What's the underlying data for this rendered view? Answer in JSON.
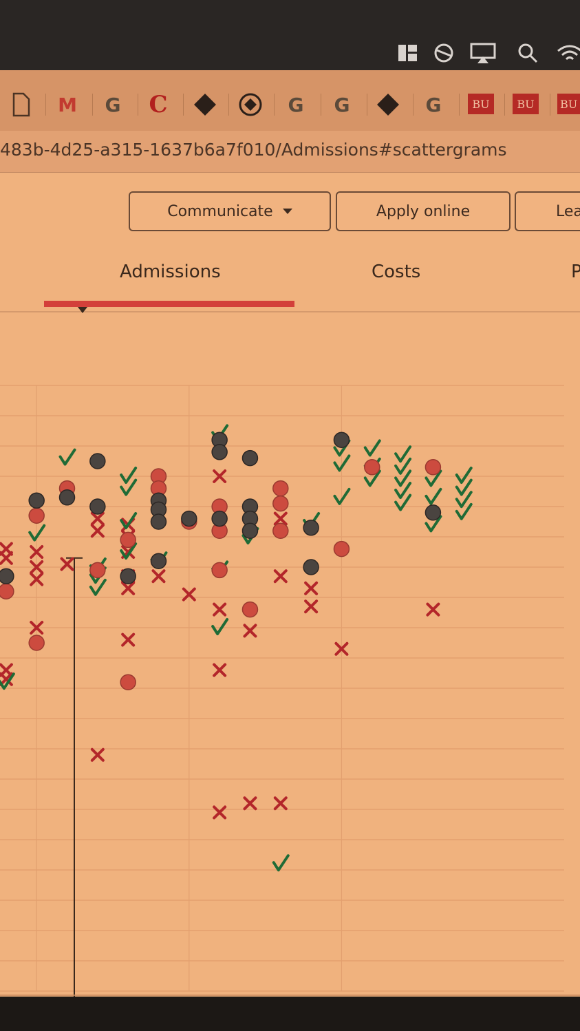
{
  "browser": {
    "url_text": "483b-4d25-a315-1637b6a7f010/Admissions#scattergrams",
    "bookmark_labels": [
      "M",
      "G",
      "C",
      "G",
      "G",
      "G",
      "BU",
      "BU",
      "BU"
    ]
  },
  "actions": {
    "communicate_label": "Communicate",
    "apply_label": "Apply online",
    "learn_label": "Lea"
  },
  "tabs": {
    "admissions_label": "Admissions",
    "costs_label": "Costs",
    "third_label": "P"
  },
  "colors": {
    "tab_underline": "#d3403a",
    "accepted_check": "#1f6b36",
    "denied_x": "#b3262a",
    "circle_red": "#cc4b3f",
    "circle_dark": "#4a4440"
  },
  "chart_data": {
    "type": "scatter",
    "title": "",
    "xlabel": "",
    "ylabel": "",
    "xlim": [
      0,
      18.5
    ],
    "ylim": [
      0,
      20
    ],
    "grid": true,
    "legend": "none",
    "series": [
      {
        "marker": "x",
        "points": [
          [
            0.2,
            14.6
          ],
          [
            0.2,
            14.3
          ],
          [
            0.2,
            10.6
          ],
          [
            0.2,
            10.3
          ],
          [
            1.2,
            14.5
          ],
          [
            1.2,
            14.0
          ],
          [
            1.2,
            13.6
          ],
          [
            1.2,
            12.0
          ],
          [
            2.2,
            14.1
          ],
          [
            3.2,
            15.6
          ],
          [
            3.2,
            15.2
          ],
          [
            3.2,
            7.8
          ],
          [
            4.2,
            15.4
          ],
          [
            4.2,
            15.0
          ],
          [
            4.2,
            14.5
          ],
          [
            4.2,
            13.7
          ],
          [
            4.2,
            13.3
          ],
          [
            4.2,
            11.6
          ],
          [
            5.2,
            13.7
          ],
          [
            6.2,
            13.1
          ],
          [
            7.2,
            17.0
          ],
          [
            7.2,
            15.8
          ],
          [
            7.2,
            12.6
          ],
          [
            7.2,
            10.6
          ],
          [
            7.2,
            5.9
          ],
          [
            8.2,
            15.4
          ],
          [
            8.2,
            11.9
          ],
          [
            8.2,
            6.2
          ],
          [
            9.2,
            15.6
          ],
          [
            9.2,
            13.7
          ],
          [
            9.2,
            6.2
          ],
          [
            10.2,
            13.3
          ],
          [
            10.2,
            12.7
          ],
          [
            11.2,
            11.3
          ],
          [
            14.2,
            12.6
          ]
        ]
      },
      {
        "marker": "check",
        "points": [
          [
            0.2,
            10.2
          ],
          [
            1.2,
            15.1
          ],
          [
            2.2,
            17.6
          ],
          [
            3.2,
            14.0
          ],
          [
            3.2,
            13.7
          ],
          [
            3.2,
            13.3
          ],
          [
            4.2,
            17.0
          ],
          [
            4.2,
            16.6
          ],
          [
            4.2,
            15.5
          ],
          [
            4.2,
            14.5
          ],
          [
            5.2,
            14.2
          ],
          [
            7.2,
            18.4
          ],
          [
            7.2,
            13.9
          ],
          [
            7.2,
            12.0
          ],
          [
            8.2,
            15.0
          ],
          [
            9.2,
            4.2
          ],
          [
            10.2,
            15.5
          ],
          [
            11.2,
            17.9
          ],
          [
            11.2,
            17.4
          ],
          [
            11.2,
            16.3
          ],
          [
            12.2,
            17.9
          ],
          [
            12.2,
            17.3
          ],
          [
            12.2,
            16.9
          ],
          [
            13.2,
            17.7
          ],
          [
            13.2,
            17.3
          ],
          [
            13.2,
            16.9
          ],
          [
            13.2,
            16.5
          ],
          [
            13.2,
            16.1
          ],
          [
            14.2,
            16.9
          ],
          [
            14.2,
            16.3
          ],
          [
            14.2,
            15.4
          ],
          [
            15.2,
            17.0
          ],
          [
            15.2,
            16.6
          ],
          [
            15.2,
            16.2
          ],
          [
            15.2,
            15.8
          ]
        ]
      },
      {
        "marker": "circle-red",
        "points": [
          [
            0.2,
            13.2
          ],
          [
            1.2,
            11.5
          ],
          [
            1.2,
            15.7
          ],
          [
            2.2,
            16.6
          ],
          [
            3.2,
            13.9
          ],
          [
            4.2,
            14.9
          ],
          [
            4.2,
            10.2
          ],
          [
            5.2,
            17.0
          ],
          [
            5.2,
            16.6
          ],
          [
            6.2,
            15.5
          ],
          [
            7.2,
            16.0
          ],
          [
            7.2,
            15.2
          ],
          [
            7.2,
            13.9
          ],
          [
            8.2,
            12.6
          ],
          [
            9.2,
            16.6
          ],
          [
            9.2,
            16.1
          ],
          [
            9.2,
            15.2
          ],
          [
            11.2,
            14.6
          ],
          [
            12.2,
            17.3
          ],
          [
            14.2,
            17.3
          ]
        ]
      },
      {
        "marker": "circle-dark",
        "points": [
          [
            0.2,
            13.7
          ],
          [
            1.2,
            16.2
          ],
          [
            2.2,
            16.3
          ],
          [
            3.2,
            17.5
          ],
          [
            3.2,
            16.0
          ],
          [
            4.2,
            13.7
          ],
          [
            5.2,
            16.2
          ],
          [
            5.2,
            15.9
          ],
          [
            5.2,
            15.5
          ],
          [
            5.2,
            14.2
          ],
          [
            6.2,
            15.6
          ],
          [
            7.2,
            18.2
          ],
          [
            7.2,
            17.8
          ],
          [
            7.2,
            15.6
          ],
          [
            8.2,
            17.6
          ],
          [
            8.2,
            16.0
          ],
          [
            8.2,
            15.6
          ],
          [
            8.2,
            15.2
          ],
          [
            10.2,
            15.3
          ],
          [
            10.2,
            14.0
          ],
          [
            11.2,
            18.2
          ],
          [
            14.2,
            15.8
          ]
        ]
      }
    ]
  }
}
